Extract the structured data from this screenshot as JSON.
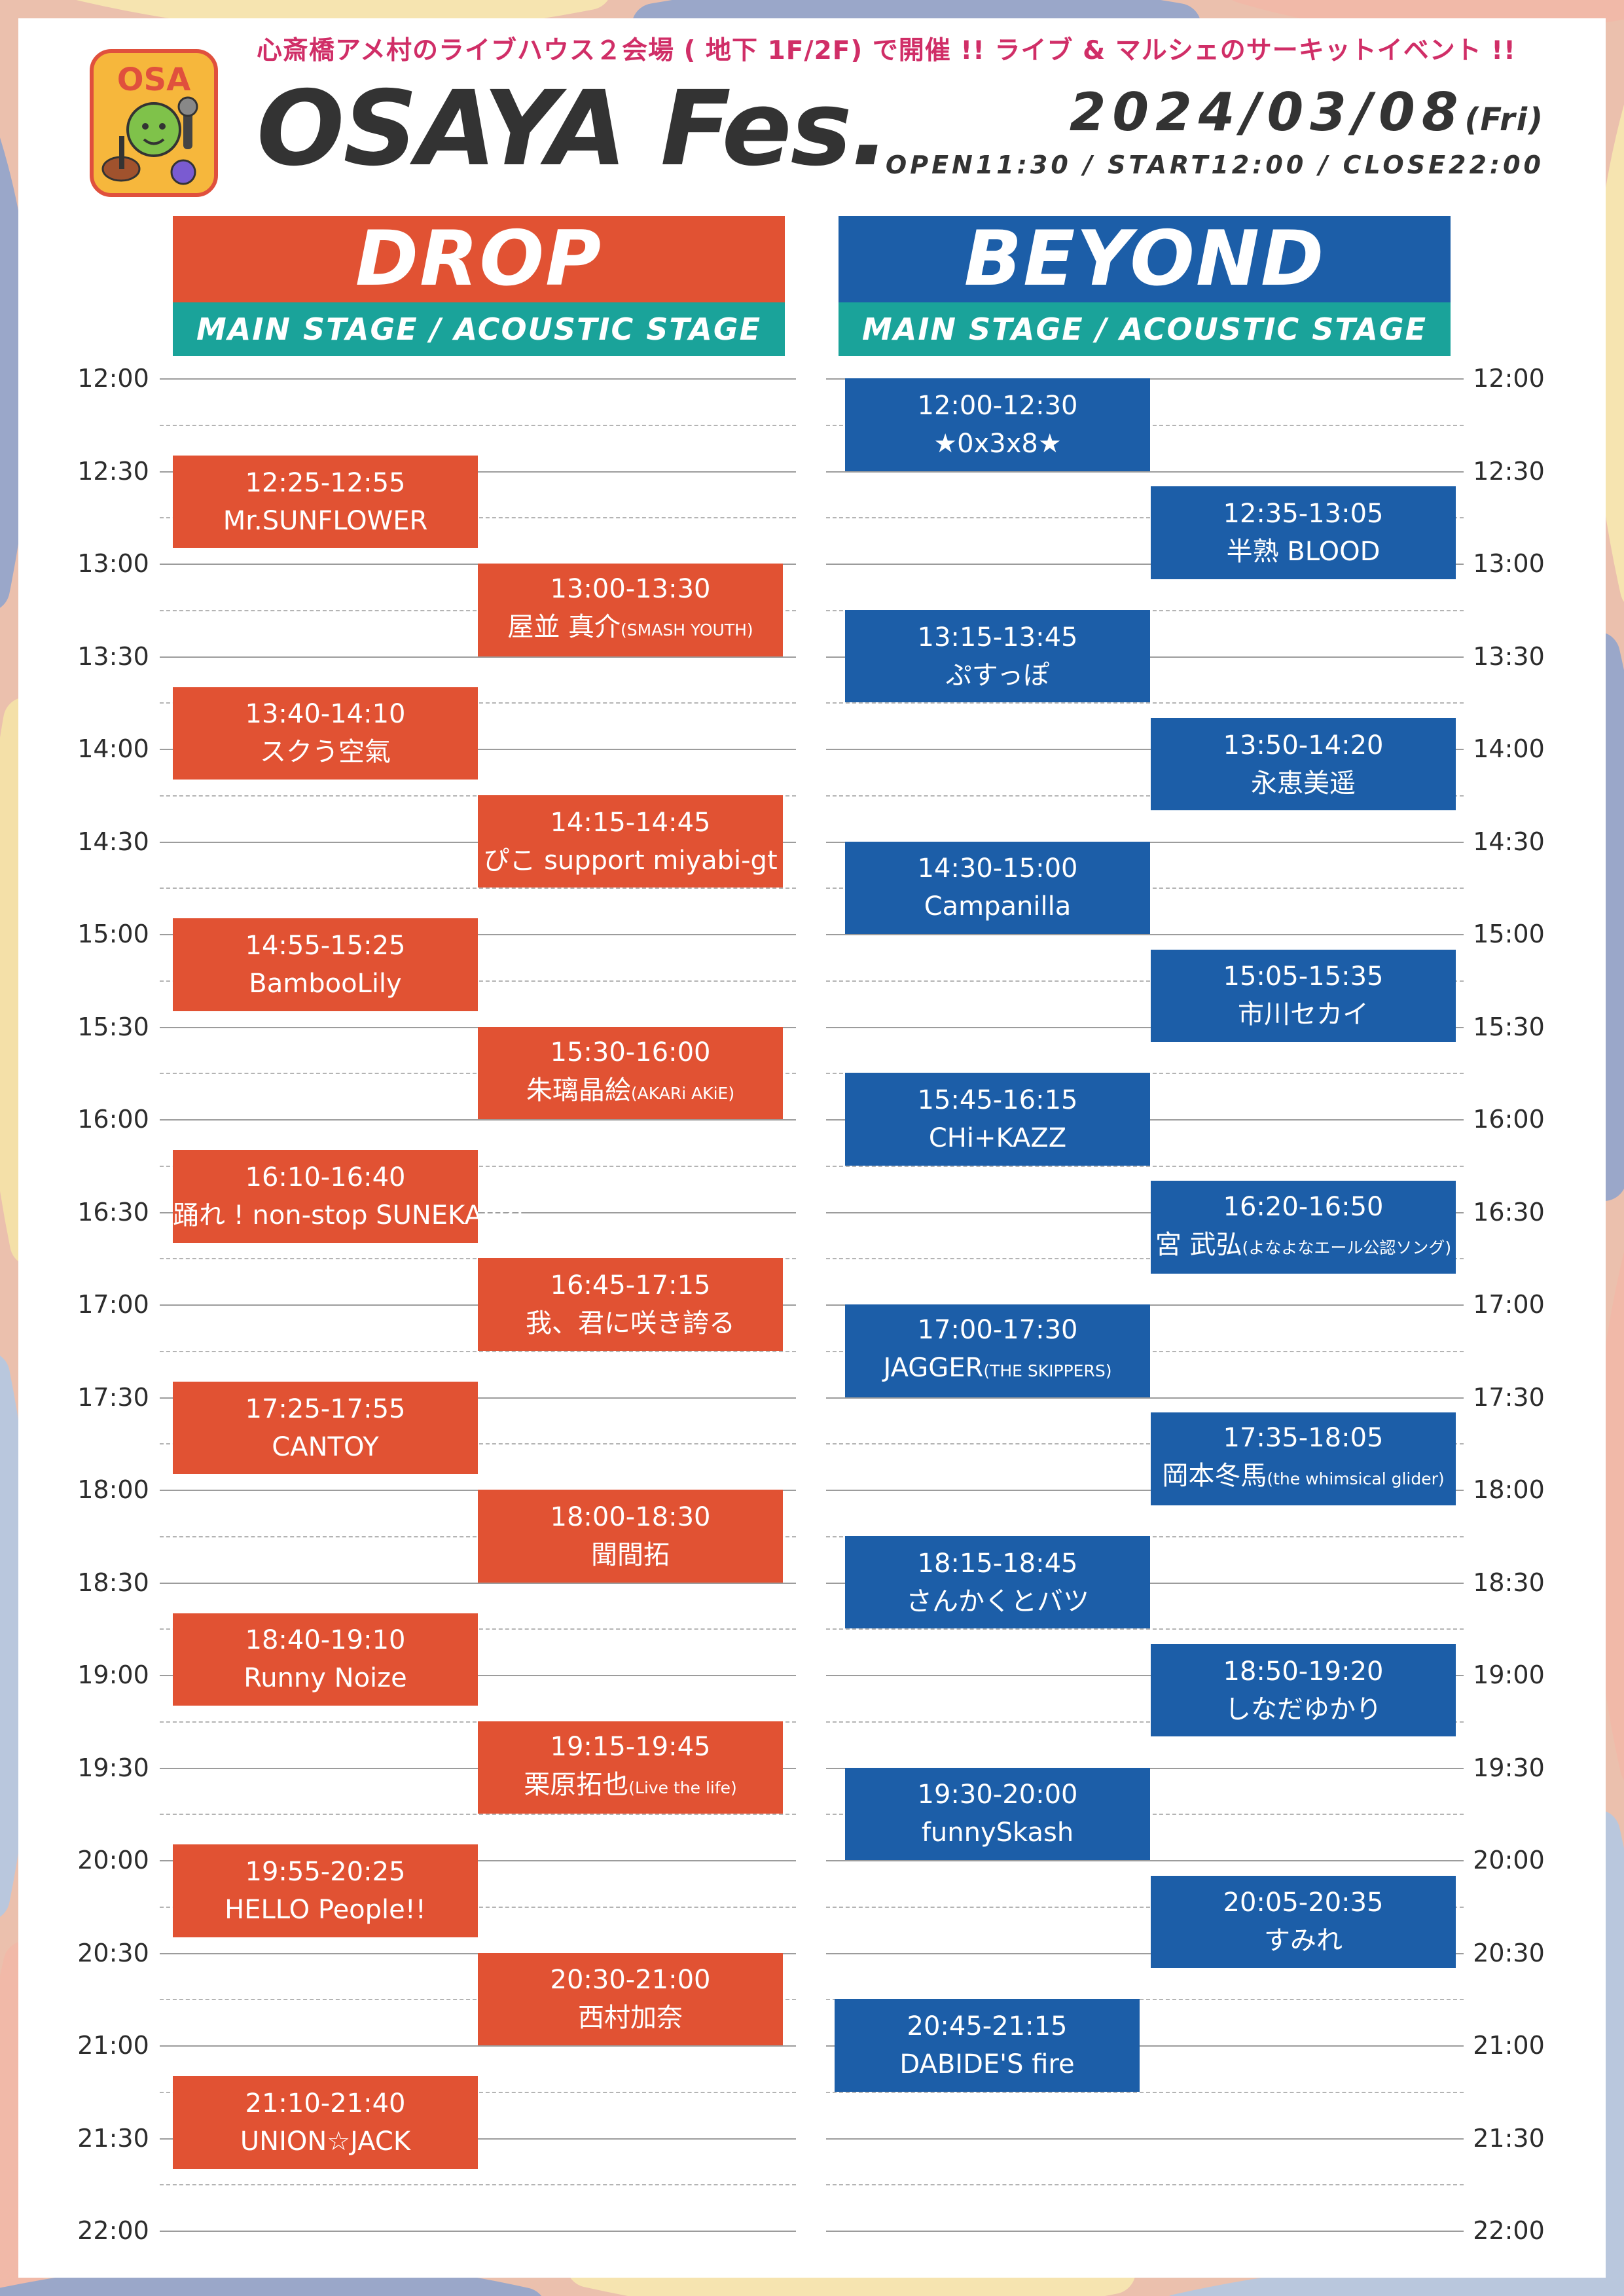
{
  "event": {
    "tagline": "心斎橋アメ村のライブハウス２会場 ( 地下 1F/2F) で開催 !! ライブ & マルシェのサーキットイベント !!",
    "title": "OSAYA Fes.",
    "date": "2024/03/08",
    "day": "(Fri)",
    "times": "OPEN11:30 / START12:00 / CLOSE22:00"
  },
  "logo": {
    "text": "OSA",
    "icon": "mascot-guitar-microphone-icon"
  },
  "venues": [
    {
      "name": "DROP",
      "stages": "MAIN STAGE / ACOUSTIC STAGE"
    },
    {
      "name": "BEYOND",
      "stages": "MAIN STAGE / ACOUSTIC STAGE"
    }
  ],
  "time_labels": [
    "12:00",
    "12:30",
    "13:00",
    "13:30",
    "14:00",
    "14:30",
    "15:00",
    "15:30",
    "16:00",
    "16:30",
    "17:00",
    "17:30",
    "18:00",
    "18:30",
    "19:00",
    "19:30",
    "20:00",
    "20:30",
    "21:00",
    "21:30",
    "22:00"
  ],
  "drop": [
    {
      "time": "12:25-12:55",
      "artist": "Mr.SUNFLOWER",
      "note": "",
      "col": 0
    },
    {
      "time": "13:00-13:30",
      "artist": "屋並 真介",
      "note": "(SMASH YOUTH)",
      "col": 1
    },
    {
      "time": "13:40-14:10",
      "artist": "スクう空氣",
      "note": "",
      "col": 0
    },
    {
      "time": "14:15-14:45",
      "artist": "ぴこ support miyabi-gt",
      "note": "",
      "col": 1
    },
    {
      "time": "14:55-15:25",
      "artist": "BambooLily",
      "note": "",
      "col": 0
    },
    {
      "time": "15:30-16:00",
      "artist": "朱璃晶絵",
      "note": "(AKARi AKiE)",
      "col": 1
    },
    {
      "time": "16:10-16:40",
      "artist": "踊れ ! non-stop SUNEKAJIRI",
      "note": "",
      "col": 0
    },
    {
      "time": "16:45-17:15",
      "artist": "我、君に咲き誇る",
      "note": "",
      "col": 1
    },
    {
      "time": "17:25-17:55",
      "artist": "CANTOY",
      "note": "",
      "col": 0
    },
    {
      "time": "18:00-18:30",
      "artist": "聞間拓",
      "note": "",
      "col": 1
    },
    {
      "time": "18:40-19:10",
      "artist": "Runny Noize",
      "note": "",
      "col": 0
    },
    {
      "time": "19:15-19:45",
      "artist": "栗原拓也",
      "note": "(Live the life)",
      "col": 1
    },
    {
      "time": "19:55-20:25",
      "artist": "HELLO People!!",
      "note": "",
      "col": 0
    },
    {
      "time": "20:30-21:00",
      "artist": "西村加奈",
      "note": "",
      "col": 1
    },
    {
      "time": "21:10-21:40",
      "artist": "UNION☆JACK",
      "note": "",
      "col": 0
    }
  ],
  "beyond": [
    {
      "time": "12:00-12:30",
      "artist": "★0x3x8★",
      "note": "",
      "col": 0
    },
    {
      "time": "12:35-13:05",
      "artist": "半熟 BLOOD",
      "note": "",
      "col": 1
    },
    {
      "time": "13:15-13:45",
      "artist": "ぷすっぽ",
      "note": "",
      "col": 0
    },
    {
      "time": "13:50-14:20",
      "artist": "永恵美遥",
      "note": "",
      "col": 1
    },
    {
      "time": "14:30-15:00",
      "artist": "Campanilla",
      "note": "",
      "col": 0
    },
    {
      "time": "15:05-15:35",
      "artist": "市川セカイ",
      "note": "",
      "col": 1
    },
    {
      "time": "15:45-16:15",
      "artist": "CHi+KAZZ",
      "note": "",
      "col": 0
    },
    {
      "time": "16:20-16:50",
      "artist": "宮 武弘",
      "note": "(よなよなエール公認ソング)",
      "col": 1
    },
    {
      "time": "17:00-17:30",
      "artist": "JAGGER",
      "note": "(THE SKIPPERS)",
      "col": 0
    },
    {
      "time": "17:35-18:05",
      "artist": "岡本冬馬",
      "note": "(the whimsical glider)",
      "col": 1
    },
    {
      "time": "18:15-18:45",
      "artist": "さんかくとバツ",
      "note": "",
      "col": 0
    },
    {
      "time": "18:50-19:20",
      "artist": "しなだゆかり",
      "note": "",
      "col": 1
    },
    {
      "time": "19:30-20:00",
      "artist": "funnySkash",
      "note": "",
      "col": 0
    },
    {
      "time": "20:05-20:35",
      "artist": "すみれ",
      "note": "",
      "col": 1
    },
    {
      "time": "20:45-21:15",
      "artist": "DABIDE'S fire",
      "note": "",
      "col": 0
    }
  ],
  "colors": {
    "drop": "#e15233",
    "beyond": "#1c5ea8",
    "stage_bar": "#1aa39a",
    "tagline": "#d02e67",
    "title": "#333333"
  }
}
